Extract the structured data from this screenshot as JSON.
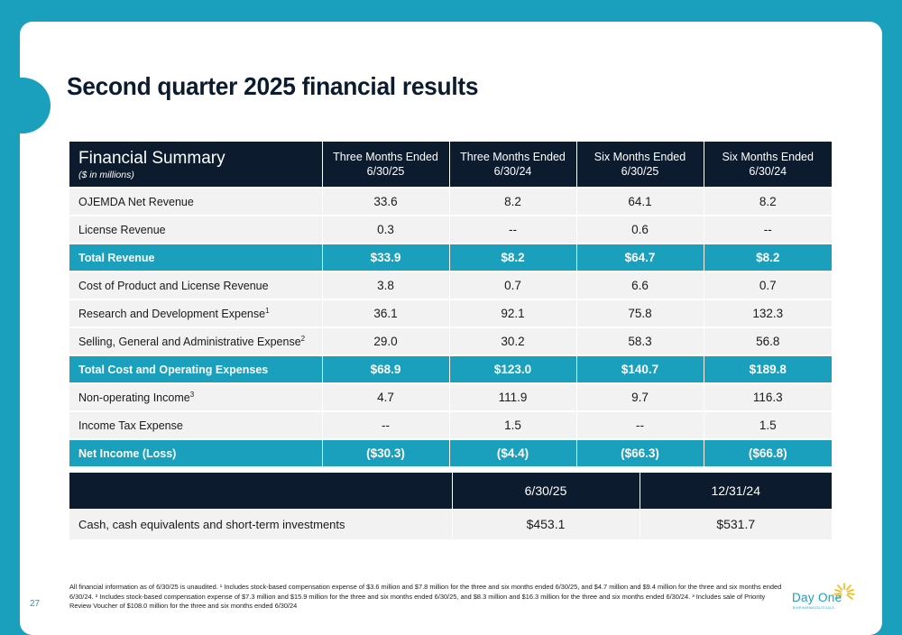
{
  "slide": {
    "title": "Second quarter 2025 financial results",
    "page_number": "27",
    "footnote": "All financial information as of 6/30/25 is unaudited. ¹ Includes stock-based compensation expense of $3.6 million and $7.8 million for the three and six months ended 6/30/25, and $4.7 million and $9.4 million for the three and six months ended 6/30/24. ² Includes stock-based compensation expense of $7.3 million and $15.9 million for the three and six months ended 6/30/25, and $8.3 million and $16.3 million for the three and six months ended 6/30/24. ³ Includes sale of Priority Review Voucher of $108.0 million for the three and six months ended 6/30/24"
  },
  "logo": {
    "name": "Day One",
    "tagline": "BIOPHARMACEUTICALS",
    "colors": {
      "text": "#1a9fbd",
      "sun": "#f2b705"
    }
  },
  "colors": {
    "accent": "#1a9fbd",
    "header": "#0d1b2e",
    "row": "#f2f2f2"
  },
  "financial_table": {
    "title": "Financial Summary",
    "subtitle": "($ in millions)",
    "columns": [
      {
        "line1": "Three Months Ended",
        "line2": "6/30/25"
      },
      {
        "line1": "Three Months Ended",
        "line2": "6/30/24"
      },
      {
        "line1": "Six Months Ended",
        "line2": "6/30/25"
      },
      {
        "line1": "Six Months Ended",
        "line2": "6/30/24"
      }
    ],
    "rows": [
      {
        "label": "OJEMDA Net Revenue",
        "sup": "",
        "highlight": false,
        "values": [
          "33.6",
          "8.2",
          "64.1",
          "8.2"
        ]
      },
      {
        "label": "License Revenue",
        "sup": "",
        "highlight": false,
        "values": [
          "0.3",
          "--",
          "0.6",
          "--"
        ]
      },
      {
        "label": "Total Revenue",
        "sup": "",
        "highlight": true,
        "values": [
          "$33.9",
          "$8.2",
          "$64.7",
          "$8.2"
        ]
      },
      {
        "label": "Cost of Product and License Revenue",
        "sup": "",
        "highlight": false,
        "values": [
          "3.8",
          "0.7",
          "6.6",
          "0.7"
        ]
      },
      {
        "label": "Research and Development Expense",
        "sup": "1",
        "highlight": false,
        "values": [
          "36.1",
          "92.1",
          "75.8",
          "132.3"
        ]
      },
      {
        "label": "Selling, General and Administrative Expense",
        "sup": "2",
        "highlight": false,
        "values": [
          "29.0",
          "30.2",
          "58.3",
          "56.8"
        ]
      },
      {
        "label": "Total Cost and Operating Expenses",
        "sup": "",
        "highlight": true,
        "values": [
          "$68.9",
          "$123.0",
          "$140.7",
          "$189.8"
        ]
      },
      {
        "label": "Non-operating Income",
        "sup": "3",
        "highlight": false,
        "values": [
          "4.7",
          "111.9",
          "9.7",
          "116.3"
        ]
      },
      {
        "label": "Income Tax Expense",
        "sup": "",
        "highlight": false,
        "values": [
          "--",
          "1.5",
          "--",
          "1.5"
        ]
      },
      {
        "label": "Net Income (Loss)",
        "sup": "",
        "highlight": true,
        "values": [
          "($30.3)",
          "($4.4)",
          "($66.3)",
          "($66.8)"
        ]
      }
    ]
  },
  "cash_table": {
    "columns": [
      "6/30/25",
      "12/31/24"
    ],
    "row": {
      "label": "Cash, cash equivalents and short-term investments",
      "values": [
        "$453.1",
        "$531.7"
      ]
    }
  }
}
